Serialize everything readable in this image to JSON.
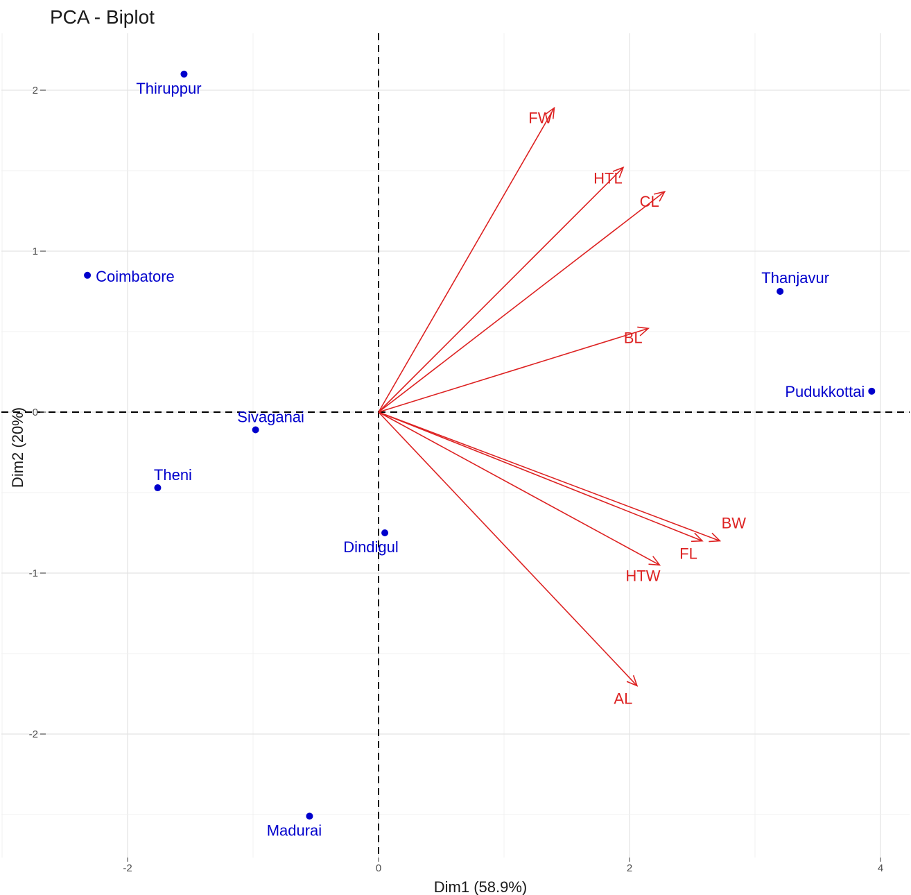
{
  "chart_data": {
    "type": "scatter",
    "subtype": "pca-biplot",
    "title": "PCA - Biplot",
    "xlabel": "Dim1 (58.9%)",
    "ylabel": "Dim2 (20%)",
    "xlim": [
      -2.0,
      4.0
    ],
    "ylim": [
      -2.5,
      2.2
    ],
    "xticks": [
      -2,
      0,
      2,
      4
    ],
    "yticks": [
      -2,
      -1,
      0,
      1,
      2
    ],
    "grid": true,
    "colors": {
      "individuals": "#0000cc",
      "variables": "#dd2222",
      "zero_lines": "#000000"
    },
    "individuals": [
      {
        "name": "Thiruppur",
        "x": -1.55,
        "y": 2.1
      },
      {
        "name": "Coimbatore",
        "x": -2.32,
        "y": 0.85
      },
      {
        "name": "Sivaganai",
        "x": -0.98,
        "y": -0.11
      },
      {
        "name": "Theni",
        "x": -1.76,
        "y": -0.47
      },
      {
        "name": "Dindigul",
        "x": 0.05,
        "y": -0.75
      },
      {
        "name": "Madurai",
        "x": -0.55,
        "y": -2.51
      },
      {
        "name": "Thanjavur",
        "x": 3.2,
        "y": 0.75
      },
      {
        "name": "Pudukkottai",
        "x": 3.93,
        "y": 0.13
      }
    ],
    "variables": [
      {
        "name": "FW",
        "x": 1.4,
        "y": 1.89
      },
      {
        "name": "HTL",
        "x": 1.95,
        "y": 1.52
      },
      {
        "name": "CL",
        "x": 2.28,
        "y": 1.37
      },
      {
        "name": "BL",
        "x": 2.15,
        "y": 0.52
      },
      {
        "name": "BW",
        "x": 2.72,
        "y": -0.8
      },
      {
        "name": "FL",
        "x": 2.58,
        "y": -0.8
      },
      {
        "name": "HTW",
        "x": 2.24,
        "y": -0.95
      },
      {
        "name": "AL",
        "x": 2.06,
        "y": -1.7
      }
    ]
  }
}
